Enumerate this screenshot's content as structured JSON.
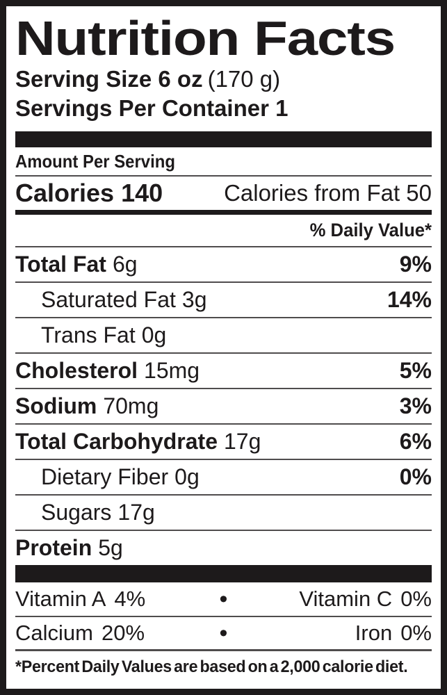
{
  "label": {
    "title": "Nutrition Facts",
    "serving_size": {
      "bold_part": "Serving Size 6 oz",
      "metric_part": "(170 g)"
    },
    "servings_per_container": "Servings Per Container 1",
    "amount_per_serving": "Amount Per Serving",
    "calories": {
      "label": "Calories",
      "value": "140",
      "from_fat_text": "Calories from Fat 50"
    },
    "daily_value_header": "% Daily Value*",
    "nutrients": [
      {
        "name": "Total Fat",
        "amount": "6g",
        "dv": "9%"
      },
      {
        "name": "Saturated Fat",
        "amount": "3g",
        "dv": "14%"
      },
      {
        "name": "Trans Fat",
        "amount": "0g",
        "dv": ""
      },
      {
        "name": "Cholesterol",
        "amount": "15mg",
        "dv": "5%"
      },
      {
        "name": "Sodium",
        "amount": "70mg",
        "dv": "3%"
      },
      {
        "name": "Total Carbohydrate",
        "amount": "17g",
        "dv": "6%"
      },
      {
        "name": "Dietary Fiber",
        "amount": "0g",
        "dv": "0%"
      },
      {
        "name": "Sugars",
        "amount": "17g",
        "dv": ""
      },
      {
        "name": "Protein",
        "amount": "5g",
        "dv": ""
      }
    ],
    "bullet": "•",
    "micronutrient_rows": [
      {
        "left_name": "Vitamin A",
        "left_value": "4%",
        "right_name": "Vitamin C",
        "right_value": "0%"
      },
      {
        "left_name": "Calcium",
        "left_value": "20%",
        "right_name": "Iron",
        "right_value": "0%"
      }
    ],
    "footnote": "*Percent Daily Values are based on a 2,000 calorie diet."
  },
  "colors": {
    "ink": "#1d1a1b",
    "rule_gray": "#4f4c4d",
    "background": "#ffffff"
  }
}
